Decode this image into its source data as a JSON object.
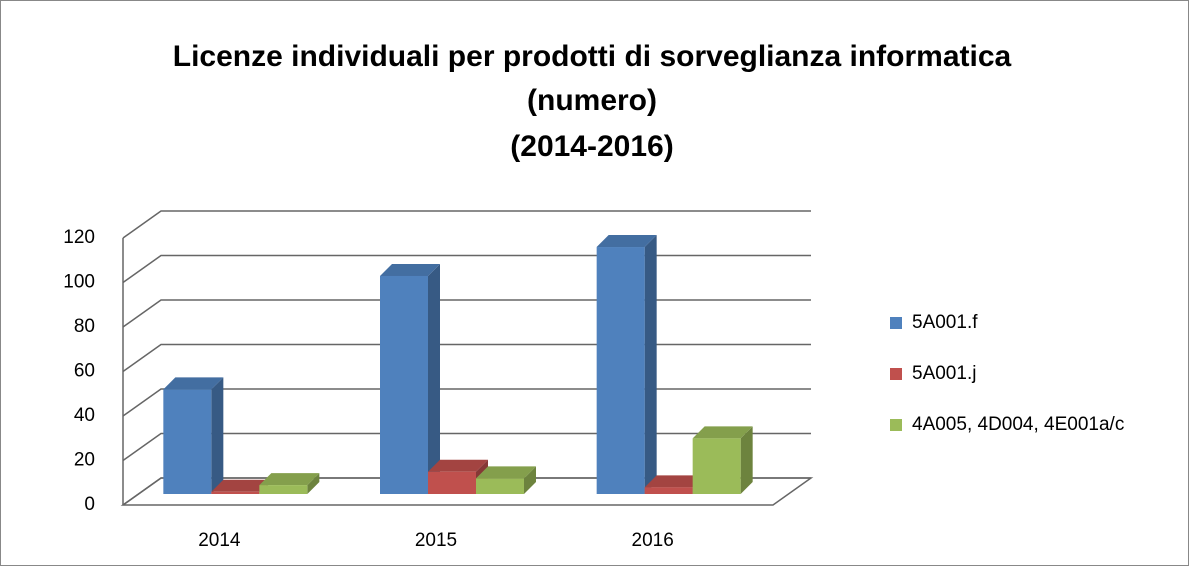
{
  "chart_data": {
    "type": "bar3d",
    "title": [
      "Licenze individuali per prodotti di sorveglianza informatica",
      "(numero)",
      "(2014-2016)"
    ],
    "categories": [
      "2014",
      "2015",
      "2016"
    ],
    "series": [
      {
        "name": "5A001.f",
        "color": "#4f81bd",
        "values": [
          47,
          98,
          111
        ]
      },
      {
        "name": "5A001.j",
        "color": "#c0504d",
        "values": [
          1,
          10,
          3
        ]
      },
      {
        "name": "4A005, 4D004, 4E001a/c",
        "color": "#9bbb59",
        "values": [
          4,
          7,
          25
        ]
      }
    ],
    "ylim": [
      0,
      120
    ],
    "yticks": [
      0,
      20,
      40,
      60,
      80,
      100,
      120
    ],
    "grid": true,
    "legend": "right"
  }
}
